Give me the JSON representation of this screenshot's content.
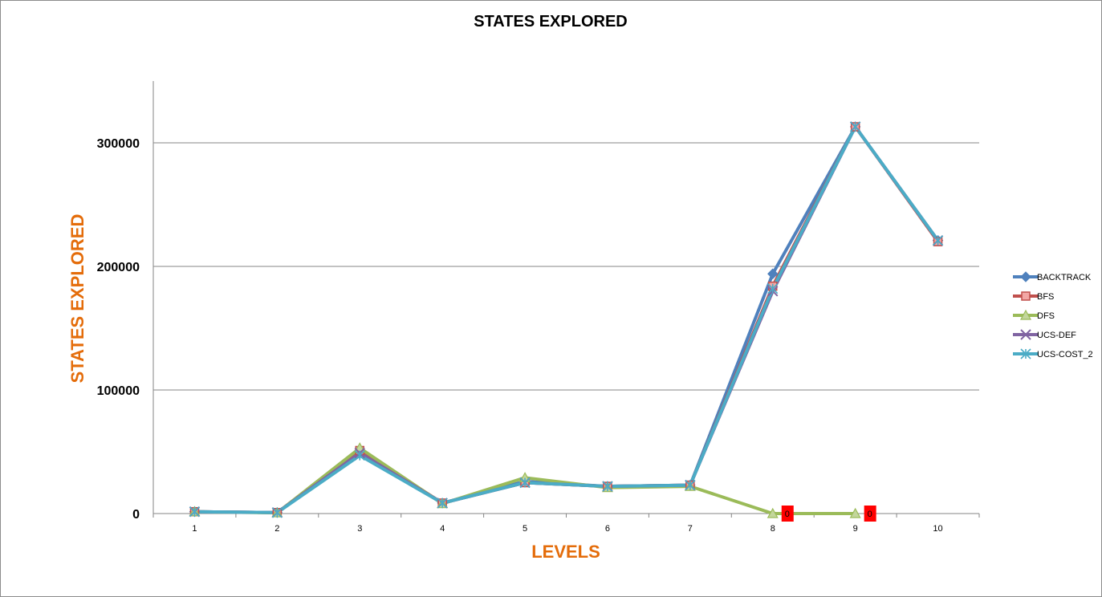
{
  "chart_data": {
    "type": "line",
    "title": "STATES EXPLORED",
    "xlabel": "LEVELS",
    "ylabel": "STATES EXPLORED",
    "categories": [
      "1",
      "2",
      "3",
      "4",
      "5",
      "6",
      "7",
      "8",
      "9",
      "10"
    ],
    "ylim": [
      0,
      350000
    ],
    "yticks": [
      "0",
      "100000",
      "200000",
      "300000"
    ],
    "ytick_values": [
      0,
      100000,
      200000,
      300000
    ],
    "grid": true,
    "legend_position": "right",
    "series": [
      {
        "name": "BACKTRACK",
        "color": "#4f81bd",
        "marker": "diamond",
        "values": [
          1500,
          800,
          50000,
          8500,
          26000,
          22000,
          23000,
          194000,
          313000,
          221000
        ]
      },
      {
        "name": "BFS",
        "color": "#c0504d",
        "marker": "square",
        "values": [
          1500,
          800,
          51000,
          8500,
          25000,
          22000,
          23000,
          184000,
          313000,
          220000
        ]
      },
      {
        "name": "DFS",
        "color": "#9bbb59",
        "marker": "triangle",
        "values": [
          1500,
          600,
          53000,
          8000,
          29000,
          21000,
          22000,
          0,
          0,
          null
        ]
      },
      {
        "name": "UCS-DEF",
        "color": "#8064a2",
        "marker": "x",
        "values": [
          1500,
          800,
          49000,
          8500,
          25000,
          22000,
          23000,
          180000,
          313000,
          221000
        ]
      },
      {
        "name": "UCS-COST_2",
        "color": "#4bacc6",
        "marker": "star",
        "values": [
          1500,
          800,
          47000,
          8500,
          25000,
          22000,
          23000,
          182000,
          313000,
          221000
        ]
      }
    ],
    "data_labels": [
      {
        "series": "DFS",
        "category": "8",
        "text": "0",
        "background": "#ff0000"
      },
      {
        "series": "DFS",
        "category": "9",
        "text": "0",
        "background": "#ff0000"
      }
    ]
  }
}
